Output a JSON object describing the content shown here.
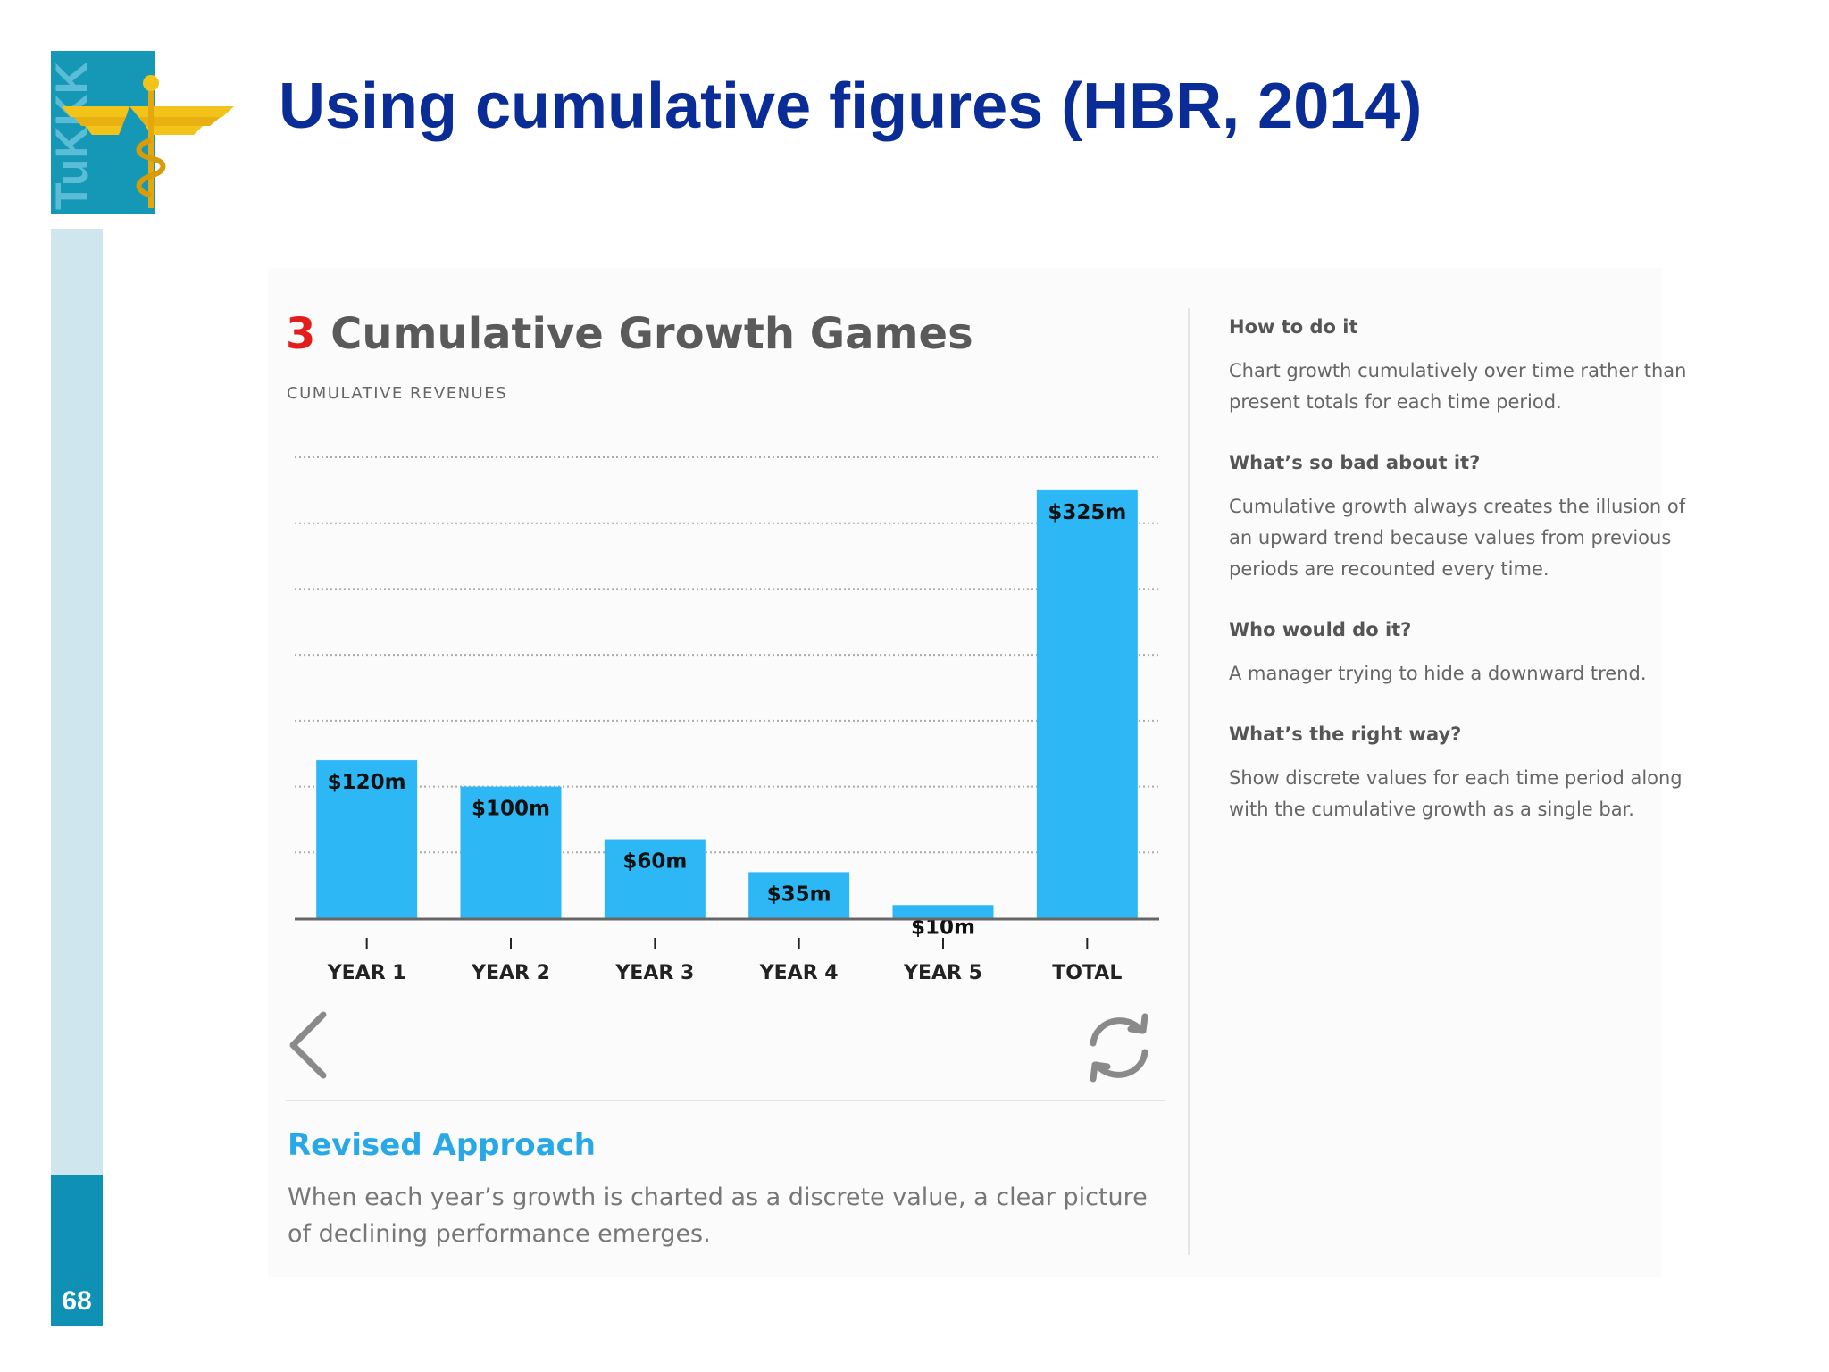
{
  "slide": {
    "title": "Using cumulative figures (HBR, 2014)",
    "page_number": "68",
    "logo_text": "TuKKK",
    "colors": {
      "title": "#0a2c96",
      "rail": "#cfe6ef",
      "badge": "#0f90b5"
    }
  },
  "article": {
    "heading_number": "3",
    "heading_text": "Cumulative Growth Games",
    "subtitle": "CUMULATIVE REVENUES",
    "revised_title": "Revised Approach",
    "revised_text": "When each year’s growth is charted as a discrete value, a clear picture of declining performance emerges.",
    "controls": {
      "prev_icon": "chevron-left-icon",
      "replay_icon": "refresh-icon"
    }
  },
  "sidebar": {
    "sections": [
      {
        "q": "How to do it",
        "a": "Chart growth cumulatively over time rather than present totals for each time period."
      },
      {
        "q": "What’s so bad about it?",
        "a": "Cumulative growth always creates the illusion of an upward trend because values from previous periods are recounted every time."
      },
      {
        "q": "Who would do it?",
        "a": "A manager trying to hide a downward trend."
      },
      {
        "q": "What’s the right way?",
        "a": "Show discrete values for each time period along with the cumulative growth as a single bar."
      }
    ]
  },
  "chart_data": {
    "type": "bar",
    "title": "Cumulative Growth Games",
    "subtitle": "CUMULATIVE REVENUES",
    "categories": [
      "YEAR 1",
      "YEAR 2",
      "YEAR 3",
      "YEAR 4",
      "YEAR 5",
      "TOTAL"
    ],
    "values": [
      120,
      100,
      60,
      35,
      10,
      325
    ],
    "value_labels": [
      "$120m",
      "$100m",
      "$60m",
      "$35m",
      "$10m",
      "$325m"
    ],
    "ylim": [
      0,
      350
    ],
    "grid": true,
    "bar_color": "#2db8f5"
  }
}
